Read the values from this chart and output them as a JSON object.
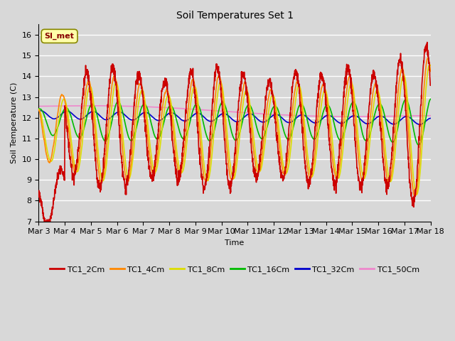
{
  "title": "Soil Temperatures Set 1",
  "xlabel": "Time",
  "ylabel": "Soil Temperature (C)",
  "ylim": [
    7.0,
    16.5
  ],
  "yticks": [
    7.0,
    8.0,
    9.0,
    10.0,
    11.0,
    12.0,
    13.0,
    14.0,
    15.0,
    16.0
  ],
  "xtick_labels": [
    "Mar 3",
    "Mar 4",
    "Mar 5",
    "Mar 6",
    "Mar 7",
    "Mar 8",
    "Mar 9",
    "Mar 10",
    "Mar 11",
    "Mar 12",
    "Mar 13",
    "Mar 14",
    "Mar 15",
    "Mar 16",
    "Mar 17",
    "Mar 18"
  ],
  "fig_bg": "#d8d8d8",
  "plot_bg": "#d8d8d8",
  "line_colors": {
    "TC1_2Cm": "#cc0000",
    "TC1_4Cm": "#ff8800",
    "TC1_8Cm": "#dddd00",
    "TC1_16Cm": "#00bb00",
    "TC1_32Cm": "#0000cc",
    "TC1_50Cm": "#ee88cc"
  },
  "annotation_text": "SI_met",
  "annotation_bg": "#ffffaa",
  "annotation_fg": "#880000",
  "n_points": 2160
}
